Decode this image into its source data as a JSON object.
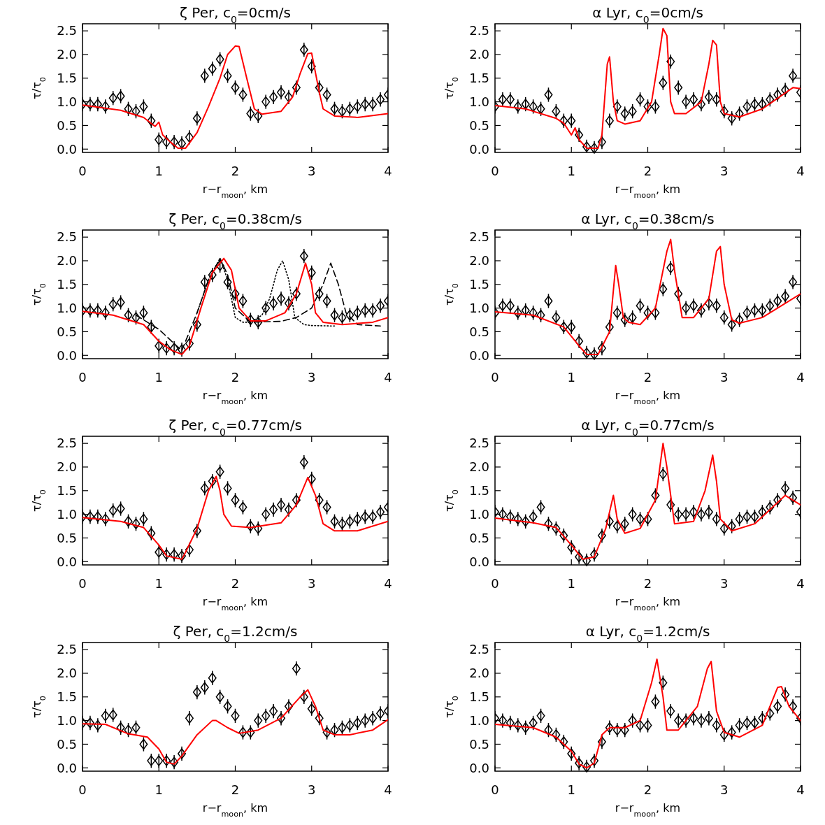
{
  "chart_data": [
    {
      "type": "scatter",
      "title": "ζ Per, c$_{0}$=0cm/s",
      "xlabel": "r−r$_{moon}$, km",
      "ylabel": "τ/τ$_{0}$",
      "xlim": [
        0,
        4
      ],
      "ylim": [
        -0.07,
        2.65
      ],
      "xticks": [
        0,
        1,
        2,
        3,
        4
      ],
      "yticks": [
        {
          "value": 0,
          "label": "0.0"
        },
        0.5,
        {
          "value": 1,
          "label": "1.0"
        },
        1.5,
        {
          "value": 2,
          "label": "2.0"
        },
        2.5
      ],
      "grid": false,
      "x": [
        0,
        0.1,
        0.2,
        0.3,
        0.4,
        0.5,
        0.6,
        0.7,
        0.8,
        0.9,
        1,
        1.1,
        1.2,
        1.3,
        1.4,
        1.5,
        1.6,
        1.7,
        1.8,
        1.9,
        2,
        2.1,
        2.2,
        2.3,
        2.4,
        2.5,
        2.6,
        2.7,
        2.8,
        2.9,
        3,
        3.1,
        3.2,
        3.3,
        3.4,
        3.5,
        3.6,
        3.7,
        3.8,
        3.9,
        4
      ],
      "series": [
        {
          "type": "scatter",
          "marker": "diamond",
          "color": "#000000",
          "values": [
            0.95,
            0.95,
            0.95,
            0.9,
            1.08,
            1.12,
            0.85,
            0.8,
            0.9,
            0.6,
            0.2,
            0.15,
            0.15,
            0.12,
            0.25,
            0.65,
            1.55,
            1.7,
            1.9,
            1.55,
            1.3,
            1.15,
            0.75,
            0.7,
            1.0,
            1.1,
            1.2,
            1.1,
            1.3,
            2.1,
            1.75,
            1.3,
            1.15,
            0.85,
            0.8,
            0.85,
            0.9,
            0.95,
            0.95,
            1.05,
            1.15
          ],
          "errors": [
            0.15,
            0.15,
            0.15,
            0.15,
            0.15,
            0.15,
            0.15,
            0.15,
            0.15,
            0.15,
            0.15,
            0.15,
            0.15,
            0.15,
            0.15,
            0.15,
            0.15,
            0.15,
            0.15,
            0.15,
            0.15,
            0.15,
            0.15,
            0.15,
            0.15,
            0.15,
            0.15,
            0.15,
            0.15,
            0.15,
            0.15,
            0.15,
            0.15,
            0.15,
            0.15,
            0.15,
            0.15,
            0.15,
            0.15,
            0.15,
            0.15
          ]
        },
        {
          "type": "line",
          "line_style": "solid",
          "color": "#ff0000",
          "x": [
            0,
            0.5,
            0.8,
            0.95,
            1.0,
            1.05,
            1.15,
            1.25,
            1.35,
            1.5,
            1.65,
            1.8,
            1.9,
            2.0,
            2.05,
            2.15,
            2.25,
            2.35,
            2.6,
            2.75,
            2.85,
            2.95,
            3.0,
            3.1,
            3.15,
            3.3,
            3.6,
            4.0
          ],
          "values": [
            0.93,
            0.82,
            0.67,
            0.48,
            0.57,
            0.3,
            0.15,
            0.02,
            0.02,
            0.35,
            0.9,
            1.5,
            2.0,
            2.18,
            2.17,
            1.5,
            0.85,
            0.74,
            0.8,
            1.1,
            1.6,
            2.02,
            2.03,
            1.2,
            0.85,
            0.7,
            0.67,
            0.75
          ]
        }
      ]
    },
    {
      "type": "scatter",
      "title": "α Lyr, c$_{0}$=0cm/s",
      "xlabel": "r−r$_{moon}$, km",
      "ylabel": "τ/τ$_{0}$",
      "xlim": [
        0,
        4
      ],
      "ylim": [
        -0.07,
        2.65
      ],
      "xticks": [
        0,
        1,
        2,
        3,
        4
      ],
      "yticks": [
        {
          "value": 0,
          "label": "0.0"
        },
        0.5,
        {
          "value": 1,
          "label": "1.0"
        },
        1.5,
        {
          "value": 2,
          "label": "2.0"
        },
        2.5
      ],
      "grid": false,
      "x": [
        0,
        0.1,
        0.2,
        0.3,
        0.4,
        0.5,
        0.6,
        0.7,
        0.8,
        0.9,
        1,
        1.1,
        1.2,
        1.3,
        1.4,
        1.5,
        1.6,
        1.7,
        1.8,
        1.9,
        2,
        2.1,
        2.2,
        2.3,
        2.4,
        2.5,
        2.6,
        2.7,
        2.8,
        2.9,
        3,
        3.1,
        3.2,
        3.3,
        3.4,
        3.5,
        3.6,
        3.7,
        3.8,
        3.9,
        4
      ],
      "series": [
        {
          "type": "scatter",
          "marker": "diamond",
          "color": "#000000",
          "values": [
            0.9,
            1.05,
            1.05,
            0.9,
            0.95,
            0.9,
            0.85,
            1.15,
            0.8,
            0.6,
            0.6,
            0.3,
            0.05,
            0.02,
            0.15,
            0.6,
            0.9,
            0.75,
            0.8,
            1.05,
            0.9,
            0.9,
            1.4,
            1.85,
            1.3,
            1.0,
            1.05,
            0.95,
            1.1,
            1.05,
            0.8,
            0.65,
            0.75,
            0.9,
            0.95,
            0.95,
            1.05,
            1.15,
            1.25,
            1.55,
            1.2
          ],
          "errors": [
            0.15,
            0.15,
            0.15,
            0.15,
            0.15,
            0.15,
            0.15,
            0.15,
            0.15,
            0.15,
            0.15,
            0.15,
            [
              -0.07,
              0.2
            ],
            [
              -0.07,
              0.17
            ],
            0.15,
            0.15,
            0.15,
            0.15,
            0.15,
            0.15,
            0.15,
            0.15,
            0.15,
            0.15,
            0.15,
            0.15,
            0.15,
            0.15,
            0.15,
            0.15,
            0.15,
            0.15,
            0.15,
            0.15,
            0.15,
            0.15,
            0.15,
            0.15,
            0.15,
            0.15,
            0.15
          ]
        },
        {
          "type": "line",
          "line_style": "solid",
          "color": "#ff0000",
          "x": [
            0,
            0.4,
            0.8,
            0.9,
            1.0,
            1.05,
            1.1,
            1.2,
            1.35,
            1.4,
            1.47,
            1.5,
            1.55,
            1.6,
            1.7,
            1.9,
            2.05,
            2.15,
            2.2,
            2.25,
            2.3,
            2.35,
            2.5,
            2.7,
            2.8,
            2.85,
            2.9,
            2.95,
            3.0,
            3.2,
            3.5,
            3.9,
            4.0
          ],
          "values": [
            0.92,
            0.85,
            0.65,
            0.55,
            0.3,
            0.45,
            0.2,
            0.02,
            0.02,
            0.3,
            1.8,
            1.95,
            1.0,
            0.6,
            0.53,
            0.6,
            1.0,
            2.0,
            2.55,
            2.4,
            1.0,
            0.75,
            0.75,
            1.0,
            1.8,
            2.3,
            2.2,
            1.0,
            0.75,
            0.68,
            0.85,
            1.3,
            1.28
          ]
        }
      ]
    },
    {
      "type": "scatter",
      "title": "ζ Per, c$_{0}$=0.38cm/s",
      "xlabel": "r−r$_{moon}$, km",
      "ylabel": "τ/τ$_{0}$",
      "xlim": [
        0,
        4
      ],
      "ylim": [
        -0.07,
        2.65
      ],
      "xticks": [
        0,
        1,
        2,
        3,
        4
      ],
      "yticks": [
        {
          "value": 0,
          "label": "0.0"
        },
        0.5,
        {
          "value": 1,
          "label": "1.0"
        },
        1.5,
        {
          "value": 2,
          "label": "2.0"
        },
        2.5
      ],
      "grid": false,
      "x": [
        0,
        0.1,
        0.2,
        0.3,
        0.4,
        0.5,
        0.6,
        0.7,
        0.8,
        0.9,
        1,
        1.1,
        1.2,
        1.3,
        1.4,
        1.5,
        1.6,
        1.7,
        1.8,
        1.9,
        2,
        2.1,
        2.2,
        2.3,
        2.4,
        2.5,
        2.6,
        2.7,
        2.8,
        2.9,
        3,
        3.1,
        3.2,
        3.3,
        3.4,
        3.5,
        3.6,
        3.7,
        3.8,
        3.9,
        4
      ],
      "series": [
        {
          "type": "scatter",
          "marker": "diamond",
          "color": "#000000",
          "values": [
            0.95,
            0.95,
            0.95,
            0.9,
            1.08,
            1.12,
            0.85,
            0.8,
            0.9,
            0.6,
            0.2,
            0.15,
            0.15,
            0.12,
            0.25,
            0.65,
            1.55,
            1.7,
            1.9,
            1.55,
            1.3,
            1.15,
            0.75,
            0.7,
            1.0,
            1.1,
            1.2,
            1.1,
            1.3,
            2.1,
            1.75,
            1.3,
            1.15,
            0.85,
            0.8,
            0.85,
            0.9,
            0.95,
            0.95,
            1.05,
            1.15
          ],
          "errors": [
            0.15,
            0.15,
            0.15,
            0.15,
            0.15,
            0.15,
            0.15,
            0.15,
            0.15,
            0.15,
            0.15,
            0.15,
            0.15,
            0.15,
            0.15,
            0.15,
            0.15,
            0.15,
            0.15,
            0.15,
            0.15,
            0.15,
            0.15,
            0.15,
            0.15,
            0.15,
            0.15,
            0.15,
            0.15,
            0.15,
            0.15,
            0.15,
            0.15,
            0.15,
            0.15,
            0.15,
            0.15,
            0.15,
            0.15,
            0.15,
            0.15
          ]
        },
        {
          "type": "line",
          "line_style": "dotted",
          "color": "#000000",
          "x": [
            1.5,
            1.65,
            1.8,
            1.9,
            2.0,
            2.1,
            2.2,
            2.35,
            2.45,
            2.55,
            2.62,
            2.7,
            2.78,
            2.9,
            3.0,
            3.3
          ],
          "values": [
            0.9,
            1.6,
            2.05,
            1.6,
            0.8,
            0.7,
            0.7,
            0.85,
            1.2,
            1.8,
            2.0,
            1.6,
            0.8,
            0.65,
            0.63,
            0.62
          ]
        },
        {
          "type": "line",
          "line_style": "dashed",
          "color": "#000000",
          "x": [
            0.7,
            1.0,
            1.2,
            1.3,
            1.5,
            1.65,
            1.8,
            1.9,
            2.0,
            2.2,
            2.6,
            2.8,
            3.0,
            3.15,
            3.25,
            3.35,
            3.45,
            3.6,
            3.9
          ],
          "values": [
            0.85,
            0.55,
            0.25,
            0.1,
            0.9,
            1.6,
            2.05,
            1.7,
            1.0,
            0.7,
            0.72,
            0.8,
            1.0,
            1.5,
            1.95,
            1.5,
            0.9,
            0.65,
            0.62
          ]
        },
        {
          "type": "line",
          "line_style": "solid",
          "color": "#ff0000",
          "x": [
            0,
            0.4,
            0.8,
            1.0,
            1.15,
            1.3,
            1.4,
            1.55,
            1.7,
            1.85,
            1.95,
            2.05,
            2.2,
            2.4,
            2.65,
            2.8,
            2.92,
            3.0,
            3.05,
            3.15,
            3.4,
            3.8,
            4.0
          ],
          "values": [
            0.93,
            0.85,
            0.65,
            0.3,
            0.12,
            0.02,
            0.2,
            1.0,
            1.75,
            2.05,
            1.8,
            1.0,
            0.73,
            0.73,
            0.9,
            1.3,
            1.95,
            1.5,
            0.9,
            0.7,
            0.65,
            0.7,
            0.8
          ]
        }
      ]
    },
    {
      "type": "scatter",
      "title": "α Lyr, c$_{0}$=0.38cm/s",
      "xlabel": "r−r$_{moon}$, km",
      "ylabel": "τ/τ$_{0}$",
      "xlim": [
        0,
        4
      ],
      "ylim": [
        -0.07,
        2.65
      ],
      "xticks": [
        0,
        1,
        2,
        3,
        4
      ],
      "yticks": [
        {
          "value": 0,
          "label": "0.0"
        },
        0.5,
        {
          "value": 1,
          "label": "1.0"
        },
        1.5,
        {
          "value": 2,
          "label": "2.0"
        },
        2.5
      ],
      "grid": false,
      "x": [
        0,
        0.1,
        0.2,
        0.3,
        0.4,
        0.5,
        0.6,
        0.7,
        0.8,
        0.9,
        1,
        1.1,
        1.2,
        1.3,
        1.4,
        1.5,
        1.6,
        1.7,
        1.8,
        1.9,
        2,
        2.1,
        2.2,
        2.3,
        2.4,
        2.5,
        2.6,
        2.7,
        2.8,
        2.9,
        3,
        3.1,
        3.2,
        3.3,
        3.4,
        3.5,
        3.6,
        3.7,
        3.8,
        3.9,
        4
      ],
      "series": [
        {
          "type": "scatter",
          "marker": "diamond",
          "color": "#000000",
          "values": [
            0.9,
            1.05,
            1.05,
            0.9,
            0.95,
            0.9,
            0.85,
            1.15,
            0.8,
            0.6,
            0.6,
            0.3,
            0.05,
            0.02,
            0.15,
            0.6,
            0.9,
            0.75,
            0.8,
            1.05,
            0.9,
            0.9,
            1.4,
            1.85,
            1.3,
            1.0,
            1.05,
            0.95,
            1.1,
            1.05,
            0.8,
            0.65,
            0.75,
            0.9,
            0.95,
            0.95,
            1.05,
            1.15,
            1.25,
            1.55,
            1.2
          ],
          "errors": [
            0.15,
            0.15,
            0.15,
            0.15,
            0.15,
            0.15,
            0.15,
            0.15,
            0.15,
            0.15,
            0.15,
            0.15,
            [
              -0.07,
              0.2
            ],
            [
              -0.07,
              0.17
            ],
            0.15,
            0.15,
            0.15,
            0.15,
            0.15,
            0.15,
            0.15,
            0.15,
            0.15,
            0.15,
            0.15,
            0.15,
            0.15,
            0.15,
            0.15,
            0.15,
            0.15,
            0.15,
            0.15,
            0.15,
            0.15,
            0.15,
            0.15,
            0.15,
            0.15,
            0.15,
            0.15
          ]
        },
        {
          "type": "line",
          "line_style": "solid",
          "color": "#ff0000",
          "x": [
            0,
            0.5,
            0.9,
            1.1,
            1.2,
            1.35,
            1.5,
            1.58,
            1.62,
            1.68,
            1.75,
            1.9,
            2.1,
            2.25,
            2.3,
            2.35,
            2.45,
            2.6,
            2.8,
            2.9,
            2.95,
            3.0,
            3.1,
            3.2,
            3.5,
            4.0
          ],
          "values": [
            0.92,
            0.85,
            0.6,
            0.2,
            0.02,
            0.02,
            0.5,
            1.9,
            1.5,
            0.8,
            0.7,
            0.65,
            1.0,
            2.2,
            2.45,
            1.8,
            0.8,
            0.8,
            1.2,
            2.2,
            2.3,
            1.5,
            0.75,
            0.68,
            0.8,
            1.3
          ]
        }
      ]
    },
    {
      "type": "scatter",
      "title": "ζ Per, c$_{0}$=0.77cm/s",
      "xlabel": "r−r$_{moon}$, km",
      "ylabel": "τ/τ$_{0}$",
      "xlim": [
        0,
        4
      ],
      "ylim": [
        -0.07,
        2.65
      ],
      "xticks": [
        0,
        1,
        2,
        3,
        4
      ],
      "yticks": [
        {
          "value": 0,
          "label": "0.0"
        },
        0.5,
        {
          "value": 1,
          "label": "1.0"
        },
        1.5,
        {
          "value": 2,
          "label": "2.0"
        },
        2.5
      ],
      "grid": false,
      "x": [
        0,
        0.1,
        0.2,
        0.3,
        0.4,
        0.5,
        0.6,
        0.7,
        0.8,
        0.9,
        1,
        1.1,
        1.2,
        1.3,
        1.4,
        1.5,
        1.6,
        1.7,
        1.8,
        1.9,
        2,
        2.1,
        2.2,
        2.3,
        2.4,
        2.5,
        2.6,
        2.7,
        2.8,
        2.9,
        3,
        3.1,
        3.2,
        3.3,
        3.4,
        3.5,
        3.6,
        3.7,
        3.8,
        3.9,
        4
      ],
      "series": [
        {
          "type": "scatter",
          "marker": "diamond",
          "color": "#000000",
          "values": [
            0.95,
            0.95,
            0.95,
            0.9,
            1.08,
            1.12,
            0.85,
            0.8,
            0.9,
            0.6,
            0.2,
            0.15,
            0.15,
            0.12,
            0.25,
            0.65,
            1.55,
            1.7,
            1.9,
            1.55,
            1.3,
            1.15,
            0.75,
            0.7,
            1.0,
            1.1,
            1.2,
            1.1,
            1.3,
            2.1,
            1.75,
            1.3,
            1.15,
            0.85,
            0.8,
            0.85,
            0.9,
            0.95,
            0.95,
            1.05,
            1.15
          ],
          "errors": [
            0.15,
            0.15,
            0.15,
            0.15,
            0.15,
            0.15,
            0.15,
            0.15,
            0.15,
            0.15,
            0.15,
            0.15,
            0.15,
            0.15,
            0.15,
            0.15,
            0.15,
            0.15,
            0.15,
            0.15,
            0.15,
            0.15,
            0.15,
            0.15,
            0.15,
            0.15,
            0.15,
            0.15,
            0.15,
            0.15,
            0.15,
            0.15,
            0.15,
            0.15,
            0.15,
            0.15,
            0.15,
            0.15,
            0.15,
            0.15,
            0.15
          ]
        },
        {
          "type": "line",
          "line_style": "solid",
          "color": "#ff0000",
          "x": [
            0,
            0.5,
            0.8,
            1.0,
            1.1,
            1.3,
            1.35,
            1.5,
            1.65,
            1.75,
            1.8,
            1.85,
            1.95,
            2.2,
            2.6,
            2.8,
            2.95,
            3.05,
            3.15,
            3.3,
            3.6,
            4.0
          ],
          "values": [
            0.93,
            0.85,
            0.72,
            0.35,
            0.12,
            0.05,
            0.2,
            0.7,
            1.5,
            1.8,
            1.5,
            1.0,
            0.75,
            0.72,
            0.82,
            1.2,
            1.78,
            1.4,
            0.8,
            0.65,
            0.65,
            0.85
          ]
        }
      ]
    },
    {
      "type": "scatter",
      "title": "α Lyr, c$_{0}$=0.77cm/s",
      "xlabel": "r−r$_{moon}$, km",
      "ylabel": "τ/τ$_{0}$",
      "xlim": [
        0,
        4
      ],
      "ylim": [
        -0.07,
        2.65
      ],
      "xticks": [
        0,
        1,
        2,
        3,
        4
      ],
      "yticks": [
        {
          "value": 0,
          "label": "0.0"
        },
        0.5,
        {
          "value": 1,
          "label": "1.0"
        },
        1.5,
        {
          "value": 2,
          "label": "2.0"
        },
        2.5
      ],
      "grid": false,
      "x": [
        0,
        0.1,
        0.2,
        0.3,
        0.4,
        0.5,
        0.6,
        0.7,
        0.8,
        0.9,
        1,
        1.1,
        1.2,
        1.3,
        1.4,
        1.5,
        1.6,
        1.7,
        1.8,
        1.9,
        2,
        2.1,
        2.2,
        2.3,
        2.4,
        2.5,
        2.6,
        2.7,
        2.8,
        2.9,
        3,
        3.1,
        3.2,
        3.3,
        3.4,
        3.5,
        3.6,
        3.7,
        3.8,
        3.9,
        4
      ],
      "series": [
        {
          "type": "scatter",
          "marker": "diamond",
          "color": "#000000",
          "values": [
            1.05,
            1.0,
            0.95,
            0.9,
            0.85,
            0.95,
            1.15,
            0.8,
            0.7,
            0.55,
            0.3,
            0.1,
            0.02,
            0.15,
            0.55,
            0.85,
            0.75,
            0.8,
            1.0,
            0.9,
            0.9,
            1.4,
            1.85,
            1.2,
            1.0,
            1.0,
            1.05,
            1.0,
            1.05,
            0.9,
            0.7,
            0.75,
            0.9,
            0.95,
            0.95,
            1.05,
            1.15,
            1.3,
            1.55,
            1.35,
            1.05
          ],
          "errors": [
            0.15,
            0.15,
            0.15,
            0.15,
            0.15,
            0.15,
            0.15,
            0.15,
            0.15,
            0.15,
            0.15,
            0.15,
            [
              -0.07,
              0.17
            ],
            0.15,
            0.15,
            0.15,
            0.15,
            0.15,
            0.15,
            0.15,
            0.15,
            0.15,
            0.15,
            0.15,
            0.15,
            0.15,
            0.15,
            0.15,
            0.15,
            0.15,
            0.15,
            0.15,
            0.15,
            0.15,
            0.15,
            0.15,
            0.15,
            0.15,
            0.15,
            0.15,
            0.15
          ]
        },
        {
          "type": "line",
          "line_style": "solid",
          "color": "#ff0000",
          "x": [
            0,
            0.5,
            0.8,
            1.0,
            1.15,
            1.3,
            1.45,
            1.55,
            1.6,
            1.7,
            1.9,
            2.1,
            2.2,
            2.25,
            2.35,
            2.6,
            2.75,
            2.85,
            2.9,
            2.95,
            3.1,
            3.4,
            3.8,
            4.0
          ],
          "values": [
            0.92,
            0.82,
            0.72,
            0.35,
            0.05,
            0.1,
            0.7,
            1.4,
            0.9,
            0.6,
            0.7,
            1.3,
            2.5,
            2.0,
            0.8,
            0.85,
            1.5,
            2.25,
            1.7,
            0.9,
            0.65,
            0.8,
            1.4,
            1.2
          ]
        }
      ]
    },
    {
      "type": "scatter",
      "title": "ζ Per, c$_{0}$=1.2cm/s",
      "xlabel": "r−r$_{moon}$, km",
      "ylabel": "τ/τ$_{0}$",
      "xlim": [
        0,
        4
      ],
      "ylim": [
        -0.07,
        2.65
      ],
      "xticks": [
        0,
        1,
        2,
        3,
        4
      ],
      "yticks": [
        {
          "value": 0,
          "label": "0.0"
        },
        0.5,
        {
          "value": 1,
          "label": "1.0"
        },
        1.5,
        {
          "value": 2,
          "label": "2.0"
        },
        2.5
      ],
      "grid": false,
      "x": [
        0,
        0.1,
        0.2,
        0.3,
        0.4,
        0.5,
        0.6,
        0.7,
        0.8,
        0.9,
        1,
        1.1,
        1.2,
        1.3,
        1.4,
        1.5,
        1.6,
        1.7,
        1.8,
        1.9,
        2,
        2.1,
        2.2,
        2.3,
        2.4,
        2.5,
        2.6,
        2.7,
        2.8,
        2.9,
        3,
        3.1,
        3.2,
        3.3,
        3.4,
        3.5,
        3.6,
        3.7,
        3.8,
        3.9,
        4
      ],
      "series": [
        {
          "type": "scatter",
          "marker": "diamond",
          "color": "#000000",
          "values": [
            0.95,
            0.95,
            0.9,
            1.1,
            1.12,
            0.85,
            0.8,
            0.85,
            0.5,
            0.15,
            0.15,
            0.15,
            0.12,
            0.3,
            1.05,
            1.6,
            1.7,
            1.9,
            1.5,
            1.3,
            1.1,
            0.75,
            0.75,
            1.0,
            1.1,
            1.2,
            1.05,
            1.3,
            2.1,
            1.5,
            1.25,
            1.05,
            0.75,
            0.8,
            0.85,
            0.9,
            0.95,
            1.0,
            1.05,
            1.15,
            1.2
          ],
          "errors": [
            0.15,
            0.15,
            0.15,
            0.15,
            0.15,
            0.15,
            0.15,
            0.15,
            0.15,
            0.15,
            0.15,
            0.15,
            0.15,
            0.15,
            0.15,
            0.15,
            0.15,
            0.15,
            0.15,
            0.15,
            0.15,
            0.15,
            0.15,
            0.15,
            0.15,
            0.15,
            0.15,
            0.15,
            0.15,
            0.15,
            0.15,
            0.15,
            0.15,
            0.15,
            0.15,
            0.15,
            0.15,
            0.15,
            0.15,
            0.15,
            0.15
          ]
        },
        {
          "type": "line",
          "line_style": "solid",
          "color": "#ff0000",
          "x": [
            0,
            0.3,
            0.6,
            0.85,
            1.0,
            1.1,
            1.2,
            1.3,
            1.5,
            1.7,
            1.75,
            1.9,
            2.05,
            2.3,
            2.6,
            2.85,
            2.95,
            3.05,
            3.15,
            3.3,
            3.5,
            3.8,
            4.0
          ],
          "values": [
            0.93,
            0.92,
            0.72,
            0.65,
            0.4,
            0.12,
            0.08,
            0.25,
            0.7,
            1.0,
            1.0,
            0.85,
            0.73,
            0.8,
            1.05,
            1.5,
            1.65,
            1.3,
            0.8,
            0.7,
            0.7,
            0.8,
            1.02
          ]
        }
      ]
    },
    {
      "type": "scatter",
      "title": "α Lyr, c$_{0}$=1.2cm/s",
      "xlabel": "r−r$_{moon}$, km",
      "ylabel": "τ/τ$_{0}$",
      "xlim": [
        0,
        4
      ],
      "ylim": [
        -0.07,
        2.65
      ],
      "xticks": [
        0,
        1,
        2,
        3,
        4
      ],
      "yticks": [
        {
          "value": 0,
          "label": "0.0"
        },
        0.5,
        {
          "value": 1,
          "label": "1.0"
        },
        1.5,
        {
          "value": 2,
          "label": "2.0"
        },
        2.5
      ],
      "grid": false,
      "x": [
        0,
        0.1,
        0.2,
        0.3,
        0.4,
        0.5,
        0.6,
        0.7,
        0.8,
        0.9,
        1,
        1.1,
        1.2,
        1.3,
        1.4,
        1.5,
        1.6,
        1.7,
        1.8,
        1.9,
        2,
        2.1,
        2.2,
        2.3,
        2.4,
        2.5,
        2.6,
        2.7,
        2.8,
        2.9,
        3,
        3.1,
        3.2,
        3.3,
        3.4,
        3.5,
        3.6,
        3.7,
        3.8,
        3.9,
        4
      ],
      "series": [
        {
          "type": "scatter",
          "marker": "diamond",
          "color": "#000000",
          "values": [
            1.05,
            1.0,
            0.95,
            0.9,
            0.85,
            0.95,
            1.1,
            0.8,
            0.7,
            0.55,
            0.3,
            0.1,
            0.02,
            0.15,
            0.55,
            0.85,
            0.8,
            0.8,
            1.0,
            0.9,
            0.9,
            1.4,
            1.8,
            1.2,
            1.0,
            1.0,
            1.05,
            1.0,
            1.05,
            0.9,
            0.7,
            0.75,
            0.9,
            0.95,
            0.95,
            1.05,
            1.15,
            1.3,
            1.55,
            1.3,
            1.05
          ],
          "errors": [
            0.15,
            0.15,
            0.15,
            0.15,
            0.15,
            0.15,
            0.15,
            0.15,
            0.15,
            0.15,
            0.15,
            0.15,
            [
              -0.07,
              0.17
            ],
            0.15,
            0.15,
            0.15,
            0.15,
            0.15,
            0.15,
            0.15,
            0.15,
            0.15,
            0.15,
            0.15,
            0.15,
            0.15,
            0.15,
            0.15,
            0.15,
            0.15,
            0.15,
            0.15,
            0.15,
            0.15,
            0.15,
            0.15,
            0.15,
            0.15,
            0.15,
            0.15,
            0.15
          ]
        },
        {
          "type": "line",
          "line_style": "solid",
          "color": "#ff0000",
          "x": [
            0,
            0.5,
            0.8,
            1.0,
            1.1,
            1.2,
            1.3,
            1.4,
            1.5,
            1.7,
            1.9,
            2.05,
            2.12,
            2.2,
            2.25,
            2.4,
            2.65,
            2.78,
            2.83,
            2.9,
            3.0,
            3.2,
            3.5,
            3.7,
            3.75,
            3.85,
            4.0
          ],
          "values": [
            0.92,
            0.85,
            0.65,
            0.35,
            0.08,
            0.0,
            0.1,
            0.7,
            0.85,
            0.85,
            1.0,
            1.8,
            2.3,
            1.5,
            0.8,
            0.8,
            1.3,
            2.1,
            2.25,
            1.2,
            0.75,
            0.65,
            0.9,
            1.7,
            1.72,
            1.3,
            1.0
          ]
        }
      ]
    }
  ]
}
